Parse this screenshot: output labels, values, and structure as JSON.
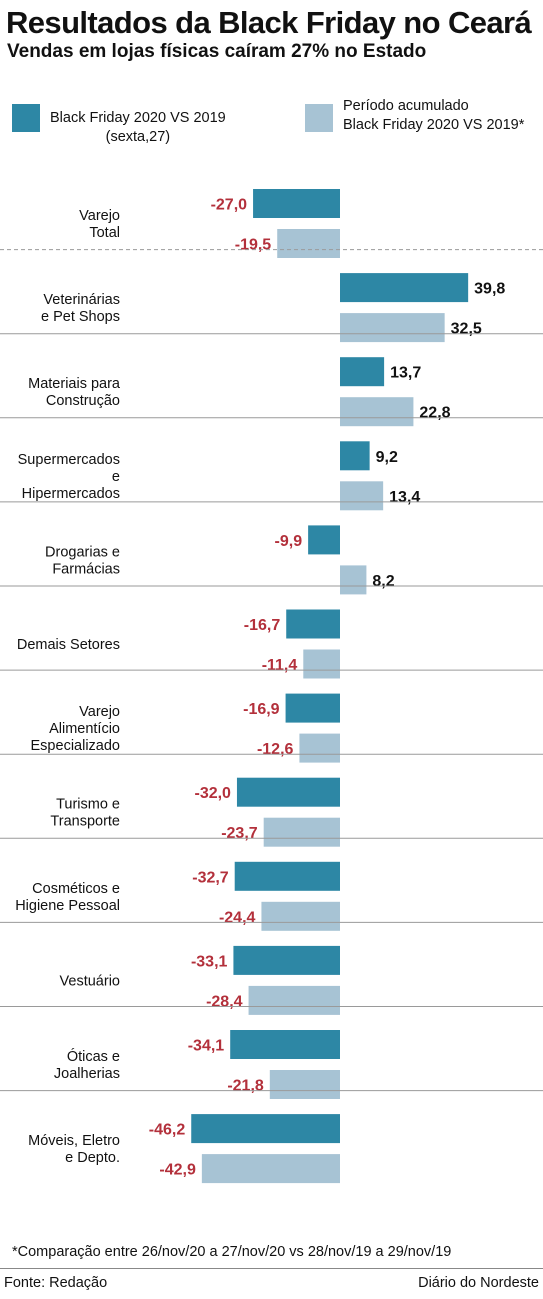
{
  "header": {
    "title": "Resultados da Black Friday no Ceará",
    "subtitle": "Vendas em lojas físicas caíram 27% no Estado"
  },
  "legend": {
    "series1_line1": "Black Friday 2020 VS 2019",
    "series1_line2": "(sexta,27)",
    "series2_line1": "Período acumulado",
    "series2_line2": "Black Friday 2020 VS 2019*"
  },
  "footer": {
    "footnote": "*Comparação entre 26/nov/20 a 27/nov/20 vs 28/nov/19 a 29/nov/19",
    "source": "Fonte: Redação",
    "publisher": "Diário do Nordeste"
  },
  "colors": {
    "series1": "#2d87a5",
    "series2": "#a7c3d4",
    "negative_label": "#b3303b",
    "positive_label": "#111111",
    "divider": "#9a9a9a"
  },
  "chart_data": {
    "type": "bar",
    "orientation": "horizontal",
    "title": "Resultados da Black Friday no Ceará",
    "subtitle": "Vendas em lojas físicas caíram 27% no Estado",
    "categories": [
      [
        "Varejo",
        "Total"
      ],
      [
        "Veterinárias",
        "e Pet Shops"
      ],
      [
        "Materiais para",
        "Construção"
      ],
      [
        "Supermercados",
        "e",
        "Hipermercados"
      ],
      [
        "Drogarias e",
        "Farmácias"
      ],
      [
        "Demais Setores"
      ],
      [
        "Varejo",
        "Alimentício",
        "Especializado"
      ],
      [
        "Turismo e",
        "Transporte"
      ],
      [
        "Cosméticos e",
        "Higiene Pessoal"
      ],
      [
        "Vestuário"
      ],
      [
        "Óticas e",
        "Joalherias"
      ],
      [
        "Móveis, Eletro",
        "e Depto."
      ]
    ],
    "series": [
      {
        "name": "Black Friday 2020 VS 2019 (sexta,27)",
        "values": [
          -27.0,
          39.8,
          13.7,
          9.2,
          -9.9,
          -16.7,
          -16.9,
          -32.0,
          -32.7,
          -33.1,
          -34.1,
          -46.2
        ],
        "labels": [
          "-27,0",
          "39,8",
          "13,7",
          "9,2",
          "-9,9",
          "-16,7",
          "-16,9",
          "-32,0",
          "-32,7",
          "-33,1",
          "-34,1",
          "-46,2"
        ]
      },
      {
        "name": "Período acumulado Black Friday 2020 VS 2019*",
        "values": [
          -19.5,
          32.5,
          22.8,
          13.4,
          8.2,
          -11.4,
          -12.6,
          -23.7,
          -24.4,
          -28.4,
          -21.8,
          -42.9
        ],
        "labels": [
          "-19,5",
          "32,5",
          "22,8",
          "13,4",
          "8,2",
          "-11,4",
          "-12,6",
          "-23,7",
          "-24,4",
          "-28,4",
          "-21,8",
          "-42,9"
        ]
      }
    ],
    "xlim": [
      -46.2,
      39.8
    ],
    "grid": false,
    "legend_position": "top"
  }
}
